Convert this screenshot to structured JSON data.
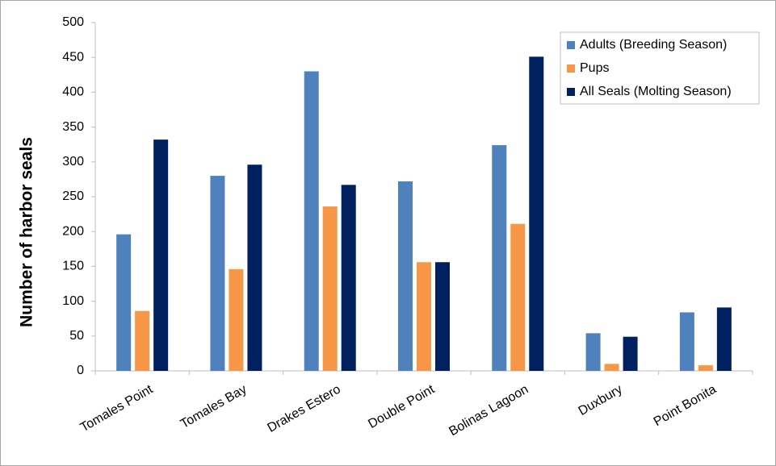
{
  "chart_data": {
    "type": "bar",
    "y_label": "Number of harbor seals",
    "categories": [
      "Tomales Point",
      "Tomales Bay",
      "Drakes Estero",
      "Double Point",
      "Bolinas Lagoon",
      "Duxbury",
      "Point Bonita"
    ],
    "series": [
      {
        "name": "Adults (Breeding Season)",
        "color": "#4f81bd",
        "values": [
          196,
          280,
          430,
          272,
          324,
          54,
          84
        ]
      },
      {
        "name": "Pups",
        "color": "#f79646",
        "values": [
          86,
          146,
          236,
          156,
          211,
          10,
          8
        ]
      },
      {
        "name": "All Seals (Molting Season)",
        "color": "#002060",
        "values": [
          332,
          296,
          267,
          156,
          451,
          49,
          91
        ]
      }
    ],
    "ylim": [
      0,
      500
    ],
    "yticks": [
      0,
      50,
      100,
      150,
      200,
      250,
      300,
      350,
      400,
      450,
      500
    ],
    "legend": "top-right"
  }
}
